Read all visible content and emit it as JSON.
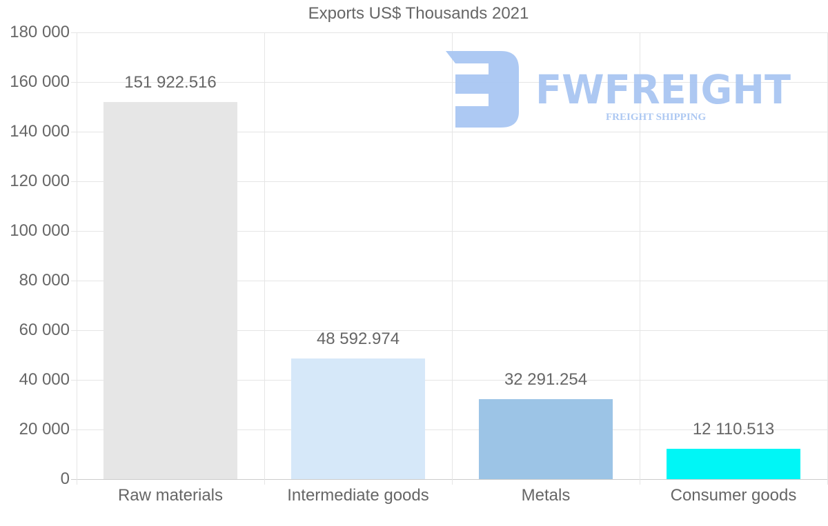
{
  "chart_data": {
    "type": "bar",
    "title": "Exports US$ Thousands 2021",
    "xlabel": "",
    "ylabel": "",
    "categories": [
      "Raw materials",
      "Intermediate goods",
      "Metals",
      "Consumer goods"
    ],
    "values": [
      151922.516,
      48592.974,
      32291.254,
      12110.513
    ],
    "value_labels": [
      "151 922.516",
      "48 592.974",
      "32 291.254",
      "12 110.513"
    ],
    "colors": [
      "#e6e6e6",
      "#d6e8f9",
      "#9cc4e6",
      "#00f6f6"
    ],
    "ylim": [
      0,
      180000
    ],
    "yticks": [
      0,
      20000,
      40000,
      60000,
      80000,
      100000,
      120000,
      140000,
      160000,
      180000
    ],
    "ytick_labels": [
      "0",
      "20 000",
      "40 000",
      "60 000",
      "80 000",
      "100 000",
      "120 000",
      "140 000",
      "160 000",
      "180 000"
    ],
    "grid": true,
    "legend": null
  },
  "watermark": {
    "brand": "FWFREIGHT",
    "tagline": "FREIGHT SHIPPING",
    "color": "#a9c6f2"
  }
}
